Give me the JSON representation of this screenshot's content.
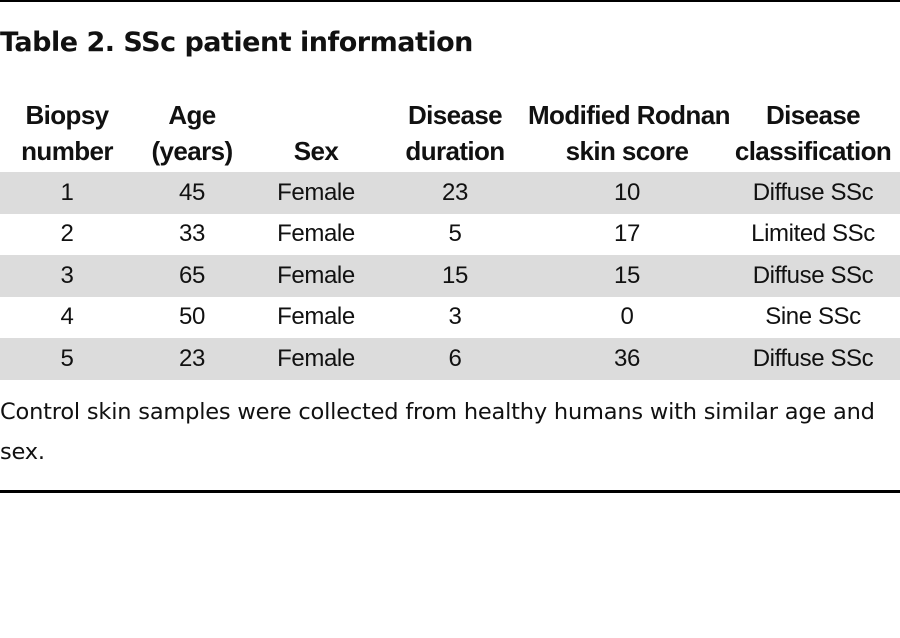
{
  "table": {
    "title": "Table 2. SSc patient information",
    "headers": [
      [
        "Biopsy",
        "number"
      ],
      [
        "Age",
        "(years)"
      ],
      [
        "",
        "Sex"
      ],
      [
        "Disease",
        "duration"
      ],
      [
        "Modified Rodnan",
        "skin score"
      ],
      [
        "Disease",
        "classification"
      ]
    ],
    "rows": [
      [
        "1",
        "45",
        "Female",
        "23",
        "10",
        "Diffuse SSc"
      ],
      [
        "2",
        "33",
        "Female",
        "5",
        "17",
        "Limited SSc"
      ],
      [
        "3",
        "65",
        "Female",
        "15",
        "15",
        "Diffuse SSc"
      ],
      [
        "4",
        "50",
        "Female",
        "3",
        "0",
        "Sine SSc"
      ],
      [
        "5",
        "23",
        "Female",
        "6",
        "36",
        "Diffuse SSc"
      ]
    ],
    "footnote": "Control skin samples were collected from healthy humans with similar age and sex."
  }
}
